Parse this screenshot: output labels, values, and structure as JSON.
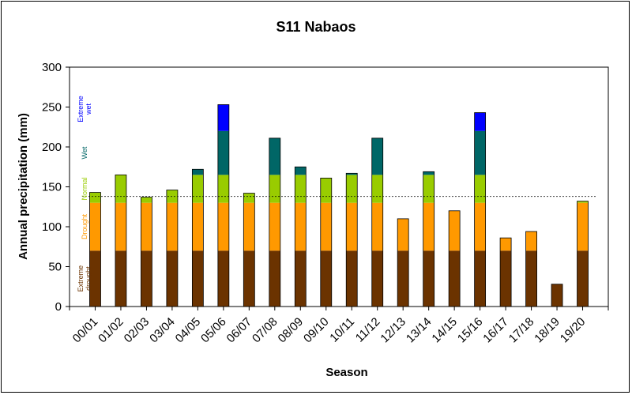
{
  "chart_data": {
    "type": "bar",
    "stacked": true,
    "title": "S11 Nabaos",
    "xlabel": "Season",
    "ylabel": "Annual precipitation (mm)",
    "ylim": [
      0,
      300
    ],
    "yticks": [
      0,
      50,
      100,
      150,
      200,
      250,
      300
    ],
    "grid": false,
    "categories": [
      "00/01",
      "01/02",
      "02/03",
      "03/04",
      "04/05",
      "05/06",
      "06/07",
      "07/08",
      "08/09",
      "09/10",
      "10/11",
      "11/12",
      "12/13",
      "13/14",
      "14/15",
      "15/16",
      "16/17",
      "17/18",
      "18/19",
      "19/20"
    ],
    "values": [
      143,
      165,
      137,
      146,
      172,
      253,
      142,
      211,
      175,
      161,
      167,
      211,
      110,
      169,
      120,
      243,
      86,
      94,
      28,
      132
    ],
    "class_thresholds": [
      70,
      130,
      165,
      220
    ],
    "class_labels": [
      "Extreme drought",
      "Drought",
      "Normal",
      "Wet",
      "Extreme wet"
    ],
    "class_colors": [
      "#6b3300",
      "#ff9900",
      "#99cc00",
      "#006666",
      "#0000ff"
    ],
    "mean_line": 138
  }
}
